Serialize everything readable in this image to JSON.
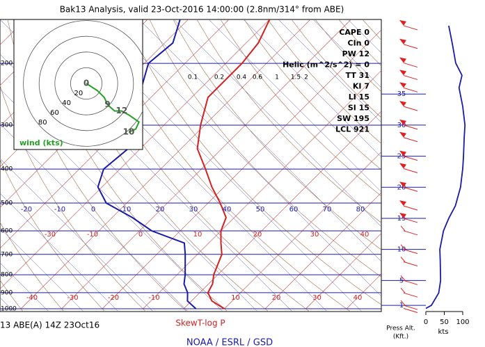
{
  "chart_data": {
    "type": "skewt",
    "title": "Bak13 Analysis, valid 23-Oct-2016 14:00:00 (2.8nm/314° from ABE)",
    "subtitle": "SkewT-log P",
    "footer_left": "13 ABE(A) 14Z 23Oct16",
    "credit": "NOAA / ESRL / GSD",
    "pressure": [
      1000,
      950,
      900,
      850,
      800,
      700,
      650,
      600,
      550,
      500,
      450,
      400,
      350,
      300,
      250,
      200,
      175,
      150
    ],
    "series": [
      {
        "color": "#d42020",
        "values": [
          10,
          5,
          2,
          1,
          -1,
          -4,
          -7,
          -10,
          -12,
          -17,
          -23,
          -29,
          -36,
          -41,
          -46,
          -46,
          -47,
          -50
        ]
      },
      {
        "color": "#1a1aa8",
        "values": [
          3,
          -1,
          -3,
          -6,
          -8,
          -13,
          -16,
          -27,
          -35,
          -45,
          -51,
          -54,
          -53,
          -57,
          -63,
          -69,
          -68,
          -72
        ]
      }
    ],
    "ylim": [
      1000,
      150
    ],
    "yticks": [
      200,
      300,
      400,
      500,
      600,
      700,
      800,
      900,
      1000
    ],
    "xticks": [
      -40,
      -30,
      -20,
      -10,
      10,
      20,
      30,
      40
    ],
    "upper_labels": [
      -20,
      -10,
      0,
      10,
      20,
      30,
      40,
      50,
      60,
      70,
      80
    ],
    "adiabat_labels": [
      "-30",
      "-10",
      "0",
      "10",
      "20",
      "30",
      "40"
    ],
    "mixing_ratio_labels": [
      "0.1",
      "0.2",
      "0.4",
      "0.6",
      "1",
      "1.5",
      "2"
    ],
    "indices": [
      "CAPE 0",
      "CIn 0",
      "PW 12",
      "Helic (m^2/s^2) = 0",
      "TT 31",
      "KI 7",
      "LI 15",
      "SI 15",
      "SW 195",
      "LCL 921"
    ],
    "hodograph": {
      "title": "wind (kts)",
      "color": "#22a022",
      "u": [
        0,
        14,
        23,
        27,
        36,
        45,
        54,
        67,
        63,
        54
      ],
      "v": [
        0,
        -9,
        -18,
        -27,
        -35,
        -35,
        -40,
        -49,
        -58,
        -62
      ],
      "labels": [
        "0",
        null,
        null,
        "9",
        null,
        "12",
        null,
        null,
        null,
        "10"
      ],
      "rings": [
        20,
        40,
        60,
        80
      ]
    },
    "wind": {
      "color": "#1a1aa8",
      "barb_color": "#e02020",
      "heights": [
        0.5,
        1,
        3,
        5,
        8,
        10,
        13,
        15,
        17,
        20,
        23,
        25,
        28,
        30,
        33,
        36,
        38,
        40,
        43,
        46
      ],
      "speeds": [
        0,
        15,
        35,
        40,
        39,
        38,
        48,
        62,
        80,
        94,
        100,
        102,
        104,
        106,
        100,
        90,
        98,
        81,
        72,
        62
      ],
      "ylim": [
        0,
        47
      ],
      "yticks": [
        1,
        5,
        10,
        15,
        20,
        25,
        30,
        35
      ],
      "xlim": [
        0,
        100
      ],
      "xticks": [
        0,
        50,
        100
      ],
      "xlabel": "kts",
      "ylabel": [
        "Press Alt.",
        "(Kft.)"
      ]
    }
  }
}
